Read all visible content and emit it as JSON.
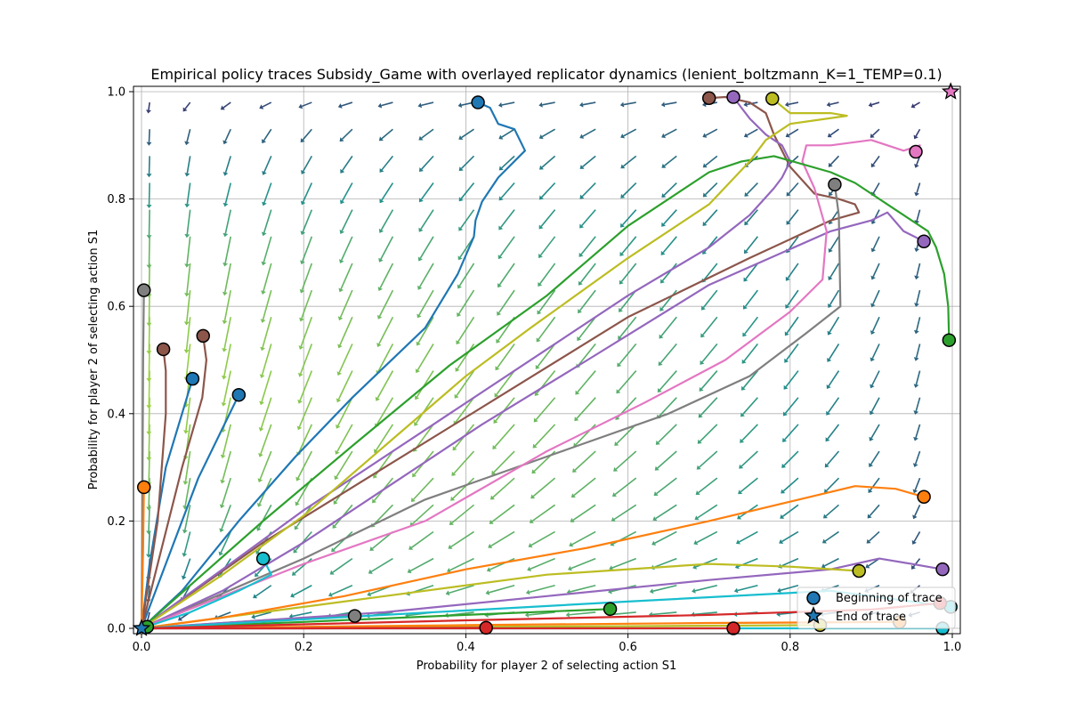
{
  "chart_data": {
    "type": "line",
    "title": "Empirical policy traces Subsidy_Game with overlayed replicator dynamics (lenient_boltzmann_K=1_TEMP=0.1)",
    "xlabel": "Probability for player 2 of selecting action S1",
    "ylabel": "Probability for player 2 of selecting action S1",
    "xlim": [
      0,
      1
    ],
    "ylim": [
      0,
      1
    ],
    "xticks": [
      "0.0",
      "0.2",
      "0.4",
      "0.6",
      "0.8",
      "1.0"
    ],
    "yticks": [
      "0.0",
      "0.2",
      "0.4",
      "0.6",
      "0.8",
      "1.0"
    ],
    "grid": true,
    "legend_position": "lower-right",
    "legend": [
      {
        "label": "Beginning of trace",
        "marker": "circle"
      },
      {
        "label": "End of trace",
        "marker": "star"
      }
    ],
    "field_colors": {
      "low": "#3b2f6e",
      "mid": "#21908c",
      "high": "#a6d83a"
    },
    "series": [
      {
        "color": "#1f77b4",
        "points": [
          [
            0.415,
            0.98
          ],
          [
            0.43,
            0.97
          ],
          [
            0.44,
            0.94
          ],
          [
            0.46,
            0.93
          ],
          [
            0.473,
            0.89
          ],
          [
            0.44,
            0.84
          ],
          [
            0.42,
            0.795
          ],
          [
            0.412,
            0.76
          ],
          [
            0.41,
            0.73
          ],
          [
            0.39,
            0.66
          ],
          [
            0.35,
            0.56
          ],
          [
            0.26,
            0.43
          ],
          [
            0.19,
            0.32
          ],
          [
            0.12,
            0.2
          ],
          [
            0.05,
            0.07
          ],
          [
            0.0,
            0.0
          ]
        ],
        "end": "0.0,0.0"
      },
      {
        "color": "#1f77b4",
        "points": [
          [
            0.063,
            0.465
          ],
          [
            0.03,
            0.3
          ],
          [
            0.01,
            0.12
          ],
          [
            0.0,
            0.0
          ]
        ]
      },
      {
        "color": "#1f77b4",
        "points": [
          [
            0.12,
            0.435
          ],
          [
            0.07,
            0.28
          ],
          [
            0.03,
            0.12
          ],
          [
            0.0,
            0.0
          ]
        ]
      },
      {
        "color": "#8c564b",
        "points": [
          [
            0.076,
            0.545
          ],
          [
            0.08,
            0.5
          ],
          [
            0.075,
            0.43
          ],
          [
            0.05,
            0.3
          ],
          [
            0.02,
            0.12
          ],
          [
            0.0,
            0.0
          ]
        ]
      },
      {
        "color": "#8c564b",
        "points": [
          [
            0.027,
            0.52
          ],
          [
            0.03,
            0.48
          ],
          [
            0.03,
            0.4
          ],
          [
            0.02,
            0.2
          ],
          [
            0.0,
            0.0
          ]
        ]
      },
      {
        "color": "#8c564b",
        "points": [
          [
            0.7,
            0.988
          ],
          [
            0.72,
            0.99
          ],
          [
            0.75,
            0.98
          ],
          [
            0.77,
            0.96
          ],
          [
            0.78,
            0.92
          ],
          [
            0.8,
            0.86
          ],
          [
            0.83,
            0.81
          ],
          [
            0.86,
            0.8
          ],
          [
            0.88,
            0.79
          ],
          [
            0.885,
            0.775
          ],
          [
            0.85,
            0.76
          ],
          [
            0.75,
            0.69
          ],
          [
            0.6,
            0.58
          ],
          [
            0.45,
            0.44
          ],
          [
            0.3,
            0.3
          ],
          [
            0.15,
            0.16
          ],
          [
            0.0,
            0.0
          ]
        ]
      },
      {
        "color": "#7f7f7f",
        "points": [
          [
            0.003,
            0.63
          ],
          [
            0.002,
            0.5
          ],
          [
            0.001,
            0.2
          ],
          [
            0.0,
            0.0
          ]
        ]
      },
      {
        "color": "#7f7f7f",
        "points": [
          [
            0.855,
            0.827
          ],
          [
            0.86,
            0.77
          ],
          [
            0.862,
            0.6
          ],
          [
            0.82,
            0.55
          ],
          [
            0.75,
            0.47
          ],
          [
            0.65,
            0.4
          ],
          [
            0.5,
            0.32
          ],
          [
            0.35,
            0.24
          ],
          [
            0.2,
            0.13
          ],
          [
            0.0,
            0.0
          ]
        ]
      },
      {
        "color": "#7f7f7f",
        "points": [
          [
            0.263,
            0.023
          ],
          [
            0.15,
            0.015
          ],
          [
            0.0,
            0.0
          ]
        ]
      },
      {
        "color": "#9467bd",
        "points": [
          [
            0.73,
            0.99
          ],
          [
            0.74,
            0.97
          ],
          [
            0.75,
            0.95
          ],
          [
            0.77,
            0.92
          ],
          [
            0.79,
            0.9
          ],
          [
            0.8,
            0.87
          ],
          [
            0.79,
            0.84
          ],
          [
            0.78,
            0.82
          ],
          [
            0.75,
            0.77
          ],
          [
            0.7,
            0.71
          ],
          [
            0.6,
            0.62
          ],
          [
            0.5,
            0.52
          ],
          [
            0.35,
            0.37
          ],
          [
            0.2,
            0.22
          ],
          [
            0.0,
            0.0
          ]
        ]
      },
      {
        "color": "#9467bd",
        "points": [
          [
            0.965,
            0.721
          ],
          [
            0.94,
            0.74
          ],
          [
            0.92,
            0.775
          ],
          [
            0.9,
            0.76
          ],
          [
            0.85,
            0.74
          ],
          [
            0.7,
            0.64
          ],
          [
            0.55,
            0.5
          ],
          [
            0.42,
            0.38
          ],
          [
            0.3,
            0.26
          ],
          [
            0.2,
            0.16
          ],
          [
            0.1,
            0.07
          ],
          [
            0.0,
            0.0
          ]
        ]
      },
      {
        "color": "#9467bd",
        "points": [
          [
            0.988,
            0.11
          ],
          [
            0.95,
            0.12
          ],
          [
            0.91,
            0.13
          ],
          [
            0.85,
            0.11
          ],
          [
            0.7,
            0.09
          ],
          [
            0.5,
            0.06
          ],
          [
            0.3,
            0.03
          ],
          [
            0.0,
            0.0
          ]
        ]
      },
      {
        "color": "#e377c2",
        "points": [
          [
            0.955,
            0.888
          ],
          [
            0.96,
            0.9
          ],
          [
            0.94,
            0.89
          ],
          [
            0.9,
            0.91
          ],
          [
            0.85,
            0.9
          ],
          [
            0.82,
            0.9
          ],
          [
            0.815,
            0.87
          ],
          [
            0.83,
            0.82
          ],
          [
            0.845,
            0.74
          ],
          [
            0.84,
            0.65
          ],
          [
            0.8,
            0.59
          ],
          [
            0.72,
            0.5
          ],
          [
            0.62,
            0.42
          ],
          [
            0.5,
            0.33
          ],
          [
            0.35,
            0.2
          ],
          [
            0.2,
            0.12
          ],
          [
            0.1,
            0.06
          ],
          [
            0.0,
            0.0
          ]
        ]
      },
      {
        "color": "#2ca02c",
        "points": [
          [
            0.996,
            0.537
          ],
          [
            0.995,
            0.6
          ],
          [
            0.99,
            0.66
          ],
          [
            0.98,
            0.71
          ],
          [
            0.97,
            0.74
          ],
          [
            0.93,
            0.78
          ],
          [
            0.88,
            0.83
          ],
          [
            0.85,
            0.85
          ],
          [
            0.78,
            0.88
          ],
          [
            0.74,
            0.87
          ],
          [
            0.7,
            0.85
          ],
          [
            0.6,
            0.75
          ],
          [
            0.5,
            0.62
          ],
          [
            0.38,
            0.49
          ],
          [
            0.26,
            0.34
          ],
          [
            0.15,
            0.2
          ],
          [
            0.0,
            0.0
          ]
        ]
      },
      {
        "color": "#2ca02c",
        "points": [
          [
            0.578,
            0.036
          ],
          [
            0.4,
            0.025
          ],
          [
            0.2,
            0.012
          ],
          [
            0.0,
            0.0
          ]
        ]
      },
      {
        "color": "#2ca02c",
        "points": [
          [
            0.007,
            0.003
          ],
          [
            0.0,
            0.0
          ]
        ]
      },
      {
        "color": "#bcbd22",
        "points": [
          [
            0.778,
            0.987
          ],
          [
            0.8,
            0.96
          ],
          [
            0.85,
            0.96
          ],
          [
            0.87,
            0.955
          ],
          [
            0.8,
            0.94
          ],
          [
            0.77,
            0.91
          ],
          [
            0.75,
            0.87
          ],
          [
            0.7,
            0.79
          ],
          [
            0.6,
            0.69
          ],
          [
            0.48,
            0.56
          ],
          [
            0.4,
            0.47
          ],
          [
            0.3,
            0.34
          ],
          [
            0.2,
            0.21
          ],
          [
            0.1,
            0.1
          ],
          [
            0.0,
            0.0
          ]
        ]
      },
      {
        "color": "#bcbd22",
        "points": [
          [
            0.885,
            0.107
          ],
          [
            0.8,
            0.115
          ],
          [
            0.7,
            0.12
          ],
          [
            0.5,
            0.1
          ],
          [
            0.3,
            0.06
          ],
          [
            0.15,
            0.03
          ],
          [
            0.0,
            0.0
          ]
        ]
      },
      {
        "color": "#bcbd22",
        "points": [
          [
            0.837,
            0.006
          ],
          [
            0.6,
            0.004
          ],
          [
            0.3,
            0.002
          ],
          [
            0.0,
            0.0
          ]
        ]
      },
      {
        "color": "#ff7f0e",
        "points": [
          [
            0.965,
            0.245
          ],
          [
            0.93,
            0.26
          ],
          [
            0.88,
            0.265
          ],
          [
            0.7,
            0.2
          ],
          [
            0.55,
            0.15
          ],
          [
            0.4,
            0.11
          ],
          [
            0.25,
            0.06
          ],
          [
            0.1,
            0.02
          ],
          [
            0.0,
            0.0
          ]
        ]
      },
      {
        "color": "#ff7f0e",
        "points": [
          [
            0.003,
            0.263
          ],
          [
            0.002,
            0.15
          ],
          [
            0.0,
            0.0
          ]
        ]
      },
      {
        "color": "#ff7f0e",
        "points": [
          [
            0.935,
            0.012
          ],
          [
            0.7,
            0.01
          ],
          [
            0.4,
            0.006
          ],
          [
            0.0,
            0.0
          ]
        ]
      },
      {
        "color": "#17becf",
        "points": [
          [
            0.15,
            0.13
          ],
          [
            0.16,
            0.1
          ],
          [
            0.12,
            0.07
          ],
          [
            0.06,
            0.03
          ],
          [
            0.0,
            0.0
          ]
        ]
      },
      {
        "color": "#17becf",
        "points": [
          [
            0.998,
            0.04
          ],
          [
            0.95,
            0.05
          ],
          [
            0.85,
            0.07
          ],
          [
            0.6,
            0.05
          ],
          [
            0.3,
            0.025
          ],
          [
            0.0,
            0.0
          ]
        ]
      },
      {
        "color": "#17becf",
        "points": [
          [
            0.988,
            0.0
          ],
          [
            0.7,
            0.0
          ],
          [
            0.3,
            0.0
          ],
          [
            0.0,
            0.0
          ]
        ]
      },
      {
        "color": "#d62728",
        "points": [
          [
            0.985,
            0.047
          ],
          [
            0.9,
            0.035
          ],
          [
            0.7,
            0.025
          ],
          [
            0.4,
            0.015
          ],
          [
            0.0,
            0.0
          ]
        ]
      },
      {
        "color": "#d62728",
        "points": [
          [
            0.425,
            0.001
          ],
          [
            0.2,
            0.0
          ],
          [
            0.0,
            0.0
          ]
        ]
      },
      {
        "color": "#d62728",
        "points": [
          [
            0.73,
            0.0
          ],
          [
            0.4,
            0.0
          ],
          [
            0.0,
            0.0
          ]
        ]
      }
    ],
    "end_markers": [
      {
        "color": "#1f77b4",
        "point": [
          0.0,
          0.0
        ]
      },
      {
        "color": "#e377c2",
        "point": [
          0.998,
          1.0
        ]
      }
    ]
  }
}
